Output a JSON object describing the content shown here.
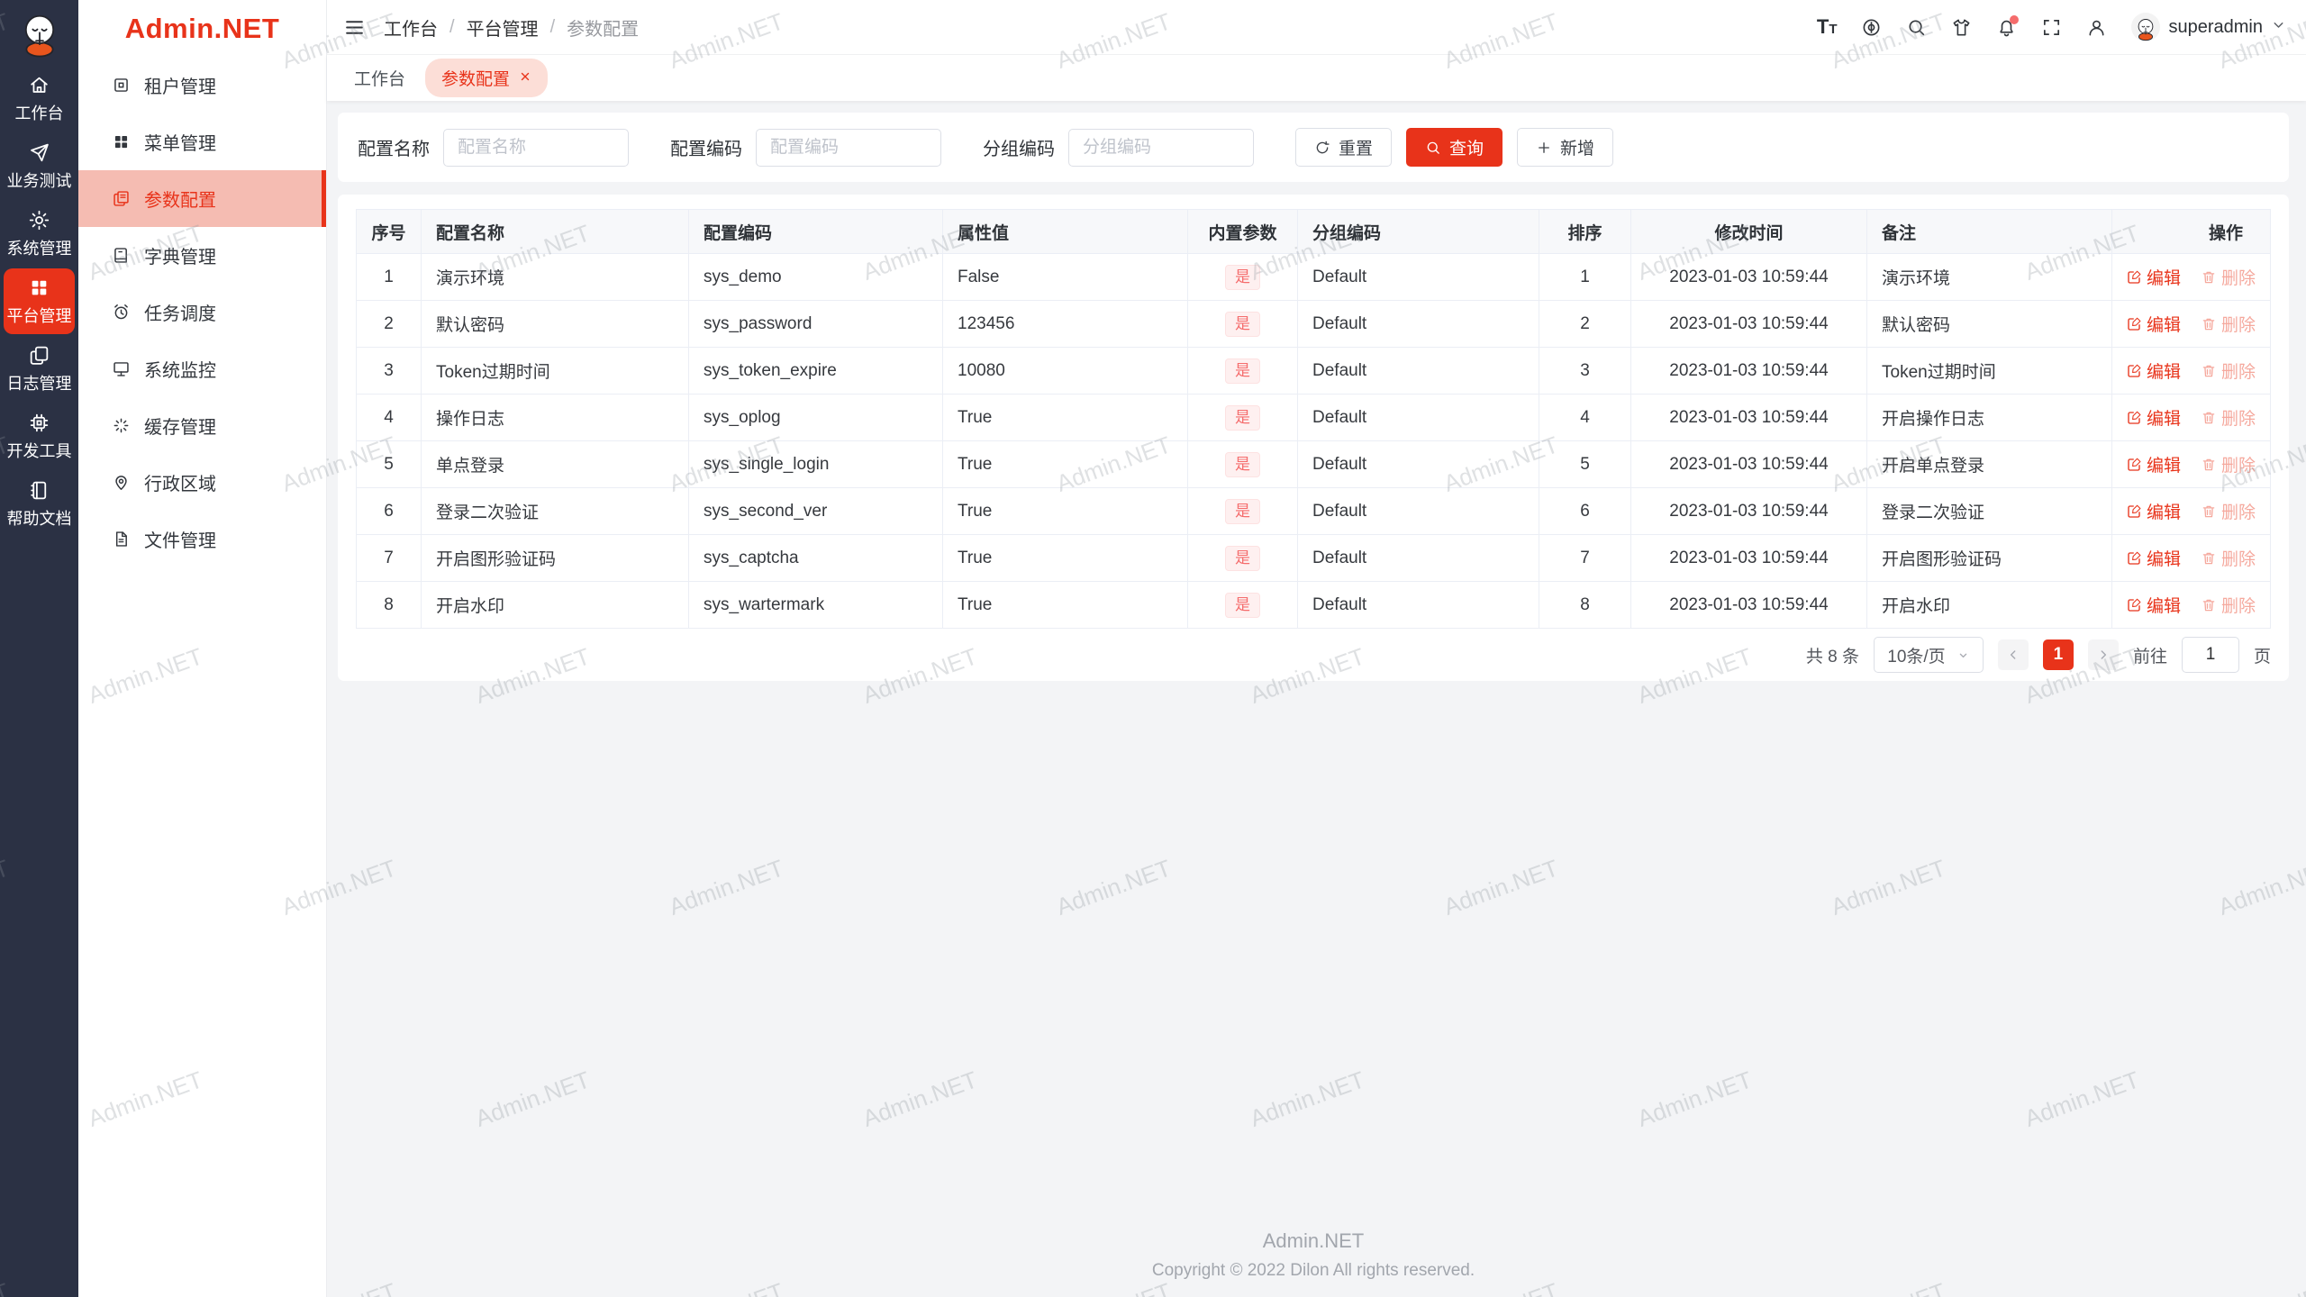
{
  "colors": {
    "primary": "#e8331a",
    "rail_bg": "#2b3144",
    "tag_text": "#f56c6c",
    "tag_bg": "#fef0f0",
    "content_bg": "#f3f4f6"
  },
  "brand": {
    "name": "Admin.NET"
  },
  "rail": {
    "items": [
      {
        "label": "工作台",
        "icon": "home-icon",
        "active": false
      },
      {
        "label": "业务测试",
        "icon": "send-icon",
        "active": false
      },
      {
        "label": "系统管理",
        "icon": "gear-icon",
        "active": false
      },
      {
        "label": "平台管理",
        "icon": "grid-icon",
        "active": true
      },
      {
        "label": "日志管理",
        "icon": "logs-icon",
        "active": false
      },
      {
        "label": "开发工具",
        "icon": "chip-icon",
        "active": false
      },
      {
        "label": "帮助文档",
        "icon": "book-icon",
        "active": false
      }
    ]
  },
  "sidebar": {
    "items": [
      {
        "label": "租户管理",
        "icon": "tenant-icon",
        "active": false
      },
      {
        "label": "菜单管理",
        "icon": "menu-grid-icon",
        "active": false
      },
      {
        "label": "参数配置",
        "icon": "config-icon",
        "active": true
      },
      {
        "label": "字典管理",
        "icon": "dict-icon",
        "active": false
      },
      {
        "label": "任务调度",
        "icon": "schedule-icon",
        "active": false
      },
      {
        "label": "系统监控",
        "icon": "monitor-icon",
        "active": false
      },
      {
        "label": "缓存管理",
        "icon": "cache-icon",
        "active": false
      },
      {
        "label": "行政区域",
        "icon": "region-icon",
        "active": false
      },
      {
        "label": "文件管理",
        "icon": "file-icon",
        "active": false
      }
    ]
  },
  "header": {
    "breadcrumb": [
      "工作台",
      "平台管理",
      "参数配置"
    ],
    "separator": "/",
    "fontsize_big": "T",
    "fontsize_small": "T",
    "username": "superadmin"
  },
  "tabs": {
    "items": [
      {
        "label": "工作台",
        "active": false,
        "closable": false
      },
      {
        "label": "参数配置",
        "active": true,
        "closable": true
      }
    ]
  },
  "search": {
    "fields": [
      {
        "label": "配置名称",
        "placeholder": "配置名称",
        "value": ""
      },
      {
        "label": "配置编码",
        "placeholder": "配置编码",
        "value": ""
      },
      {
        "label": "分组编码",
        "placeholder": "分组编码",
        "value": ""
      }
    ],
    "reset_label": "重置",
    "query_label": "查询",
    "add_label": "新增"
  },
  "table": {
    "columns": [
      "序号",
      "配置名称",
      "配置编码",
      "属性值",
      "内置参数",
      "分组编码",
      "排序",
      "修改时间",
      "备注",
      "操作"
    ],
    "actions": {
      "edit": "编辑",
      "delete": "删除"
    },
    "rows": [
      {
        "no": "1",
        "name": "演示环境",
        "code": "sys_demo",
        "value": "False",
        "builtin": "是",
        "group": "Default",
        "sort": "1",
        "time": "2023-01-03 10:59:44",
        "remark": "演示环境"
      },
      {
        "no": "2",
        "name": "默认密码",
        "code": "sys_password",
        "value": "123456",
        "builtin": "是",
        "group": "Default",
        "sort": "2",
        "time": "2023-01-03 10:59:44",
        "remark": "默认密码"
      },
      {
        "no": "3",
        "name": "Token过期时间",
        "code": "sys_token_expire",
        "value": "10080",
        "builtin": "是",
        "group": "Default",
        "sort": "3",
        "time": "2023-01-03 10:59:44",
        "remark": "Token过期时间"
      },
      {
        "no": "4",
        "name": "操作日志",
        "code": "sys_oplog",
        "value": "True",
        "builtin": "是",
        "group": "Default",
        "sort": "4",
        "time": "2023-01-03 10:59:44",
        "remark": "开启操作日志"
      },
      {
        "no": "5",
        "name": "单点登录",
        "code": "sys_single_login",
        "value": "True",
        "builtin": "是",
        "group": "Default",
        "sort": "5",
        "time": "2023-01-03 10:59:44",
        "remark": "开启单点登录"
      },
      {
        "no": "6",
        "name": "登录二次验证",
        "code": "sys_second_ver",
        "value": "True",
        "builtin": "是",
        "group": "Default",
        "sort": "6",
        "time": "2023-01-03 10:59:44",
        "remark": "登录二次验证"
      },
      {
        "no": "7",
        "name": "开启图形验证码",
        "code": "sys_captcha",
        "value": "True",
        "builtin": "是",
        "group": "Default",
        "sort": "7",
        "time": "2023-01-03 10:59:44",
        "remark": "开启图形验证码"
      },
      {
        "no": "8",
        "name": "开启水印",
        "code": "sys_wartermark",
        "value": "True",
        "builtin": "是",
        "group": "Default",
        "sort": "8",
        "time": "2023-01-03 10:59:44",
        "remark": "开启水印"
      }
    ]
  },
  "pagination": {
    "total": "共 8 条",
    "page_size": "10条/页",
    "current": "1",
    "goto_label": "前往",
    "goto_value": "1",
    "unit_label": "页"
  },
  "footer": {
    "line1": "Admin.NET",
    "line2": "Copyright © 2022 Dilon All rights reserved."
  },
  "watermark": {
    "text": "Admin.NET"
  }
}
